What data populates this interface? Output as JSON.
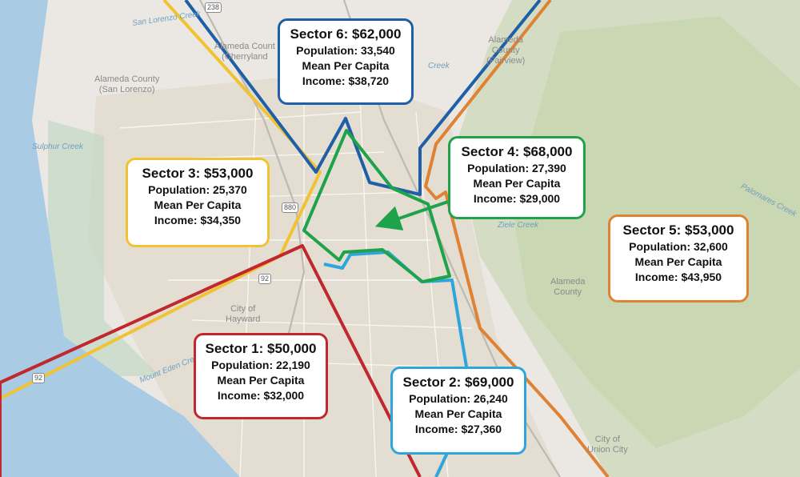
{
  "places": [
    {
      "id": "san-lorenzo",
      "text": "Alameda County\n(San Lorenzo)"
    },
    {
      "id": "cherryland",
      "text": "Alameda Count\n(Cherryland"
    },
    {
      "id": "fairview",
      "text": "Alameda\nCounty\n(Fairview)"
    },
    {
      "id": "alameda-county",
      "text": "Alameda\nCounty"
    },
    {
      "id": "hayward",
      "text": "City of\nHayward"
    },
    {
      "id": "union-city",
      "text": "City of\nUnion City"
    }
  ],
  "water": [
    {
      "id": "san-lorenzo-creek",
      "text": "San Lorenzo Creek"
    },
    {
      "id": "sulphur-creek",
      "text": "Sulphur Creek"
    },
    {
      "id": "mount-eden-creek",
      "text": "Mount Eden Creek"
    },
    {
      "id": "ziele-creek",
      "text": "Ziele Creek"
    },
    {
      "id": "palomares-creek",
      "text": "Palomares Creek"
    },
    {
      "id": "creek-top",
      "text": "Creek"
    }
  ],
  "shields": [
    {
      "id": "route-238",
      "text": "238"
    },
    {
      "id": "route-880",
      "text": "880"
    },
    {
      "id": "route-92-a",
      "text": "92"
    },
    {
      "id": "route-92-b",
      "text": "92"
    }
  ],
  "colors": {
    "sector1": "#c0282d",
    "sector2": "#2ea6db",
    "sector3": "#f1c232",
    "sector4": "#1fa34a",
    "sector5": "#e08234",
    "sector6": "#1f5fa8",
    "bay": "#a9cbe4",
    "hills": "#c9d9b4",
    "land": "#e9e6e1"
  },
  "sectors": [
    {
      "id": "sector1",
      "title": "Sector 1: $50,000",
      "population": "Population: 22,190",
      "income_label": "Mean Per Capita",
      "income": "Income: $32,000"
    },
    {
      "id": "sector2",
      "title": "Sector 2: $69,000",
      "population": "Population: 26,240",
      "income_label": "Mean Per Capita",
      "income": "Income: $27,360"
    },
    {
      "id": "sector3",
      "title": "Sector 3: $53,000",
      "population": "Population: 25,370",
      "income_label": "Mean Per Capita",
      "income": "Income: $34,350"
    },
    {
      "id": "sector4",
      "title": "Sector 4: $68,000",
      "population": "Population: 27,390",
      "income_label": "Mean Per Capita",
      "income": "Income: $29,000"
    },
    {
      "id": "sector5",
      "title": "Sector 5: $53,000",
      "population": "Population: 32,600",
      "income_label": "Mean Per Capita",
      "income": "Income: $43,950"
    },
    {
      "id": "sector6",
      "title": "Sector 6: $62,000",
      "population": "Population: 33,540",
      "income_label": "Mean Per Capita",
      "income": "Income: $38,720"
    }
  ]
}
